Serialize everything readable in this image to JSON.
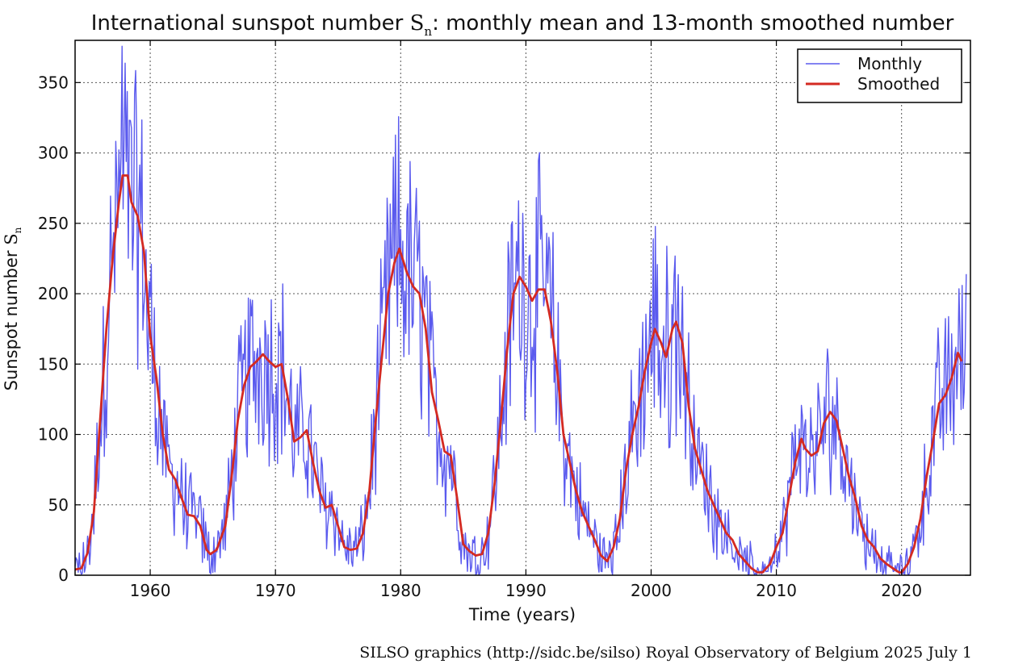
{
  "chart_data": {
    "type": "line",
    "title": {
      "prefix": "International sunspot number ",
      "symbol": "S",
      "subscript": "n",
      "suffix": ": monthly mean and 13-month smoothed number"
    },
    "xlabel": "Time (years)",
    "ylabel": {
      "prefix": "Sunspot number ",
      "symbol": "S",
      "subscript": "n"
    },
    "xlim": [
      1954.0,
      2025.5
    ],
    "ylim": [
      0,
      380
    ],
    "xticks": [
      1960,
      1970,
      1980,
      1990,
      2000,
      2010,
      2020
    ],
    "yticks": [
      0,
      50,
      100,
      150,
      200,
      250,
      300,
      350
    ],
    "grid": true,
    "legend_position": "top-right",
    "legend": [
      "Monthly",
      "Smoothed"
    ],
    "colors": {
      "monthly": "#5a5aee",
      "smoothed": "#d42a22"
    },
    "series": [
      {
        "name": "Smoothed",
        "points": [
          [
            1954.0,
            4
          ],
          [
            1954.5,
            5
          ],
          [
            1955.0,
            16
          ],
          [
            1955.5,
            45
          ],
          [
            1956.0,
            110
          ],
          [
            1956.5,
            175
          ],
          [
            1957.0,
            225
          ],
          [
            1957.5,
            265
          ],
          [
            1957.8,
            284
          ],
          [
            1958.2,
            284
          ],
          [
            1958.5,
            265
          ],
          [
            1959.0,
            255
          ],
          [
            1959.5,
            230
          ],
          [
            1960.0,
            170
          ],
          [
            1960.5,
            140
          ],
          [
            1961.0,
            100
          ],
          [
            1961.5,
            75
          ],
          [
            1962.0,
            68
          ],
          [
            1962.5,
            55
          ],
          [
            1963.0,
            43
          ],
          [
            1963.5,
            42
          ],
          [
            1964.0,
            35
          ],
          [
            1964.5,
            18
          ],
          [
            1964.8,
            15
          ],
          [
            1965.3,
            18
          ],
          [
            1966.0,
            35
          ],
          [
            1966.5,
            70
          ],
          [
            1967.0,
            110
          ],
          [
            1967.5,
            135
          ],
          [
            1968.0,
            148
          ],
          [
            1968.5,
            152
          ],
          [
            1969.0,
            157
          ],
          [
            1969.5,
            152
          ],
          [
            1970.0,
            148
          ],
          [
            1970.5,
            150
          ],
          [
            1971.0,
            125
          ],
          [
            1971.5,
            95
          ],
          [
            1972.0,
            98
          ],
          [
            1972.5,
            103
          ],
          [
            1973.0,
            80
          ],
          [
            1973.5,
            60
          ],
          [
            1974.0,
            48
          ],
          [
            1974.5,
            50
          ],
          [
            1975.0,
            35
          ],
          [
            1975.5,
            20
          ],
          [
            1976.0,
            18
          ],
          [
            1976.5,
            19
          ],
          [
            1977.0,
            30
          ],
          [
            1977.5,
            60
          ],
          [
            1978.0,
            110
          ],
          [
            1978.5,
            155
          ],
          [
            1979.0,
            200
          ],
          [
            1979.5,
            222
          ],
          [
            1979.9,
            232
          ],
          [
            1980.5,
            215
          ],
          [
            1981.0,
            205
          ],
          [
            1981.5,
            200
          ],
          [
            1982.0,
            175
          ],
          [
            1982.5,
            130
          ],
          [
            1983.0,
            110
          ],
          [
            1983.5,
            88
          ],
          [
            1984.0,
            85
          ],
          [
            1984.5,
            55
          ],
          [
            1985.0,
            22
          ],
          [
            1985.5,
            17
          ],
          [
            1986.0,
            14
          ],
          [
            1986.5,
            15
          ],
          [
            1987.0,
            30
          ],
          [
            1987.5,
            65
          ],
          [
            1988.0,
            110
          ],
          [
            1988.5,
            160
          ],
          [
            1989.0,
            200
          ],
          [
            1989.5,
            212
          ],
          [
            1990.0,
            205
          ],
          [
            1990.5,
            195
          ],
          [
            1991.0,
            203
          ],
          [
            1991.5,
            203
          ],
          [
            1992.0,
            180
          ],
          [
            1992.5,
            145
          ],
          [
            1993.0,
            100
          ],
          [
            1993.5,
            80
          ],
          [
            1994.0,
            60
          ],
          [
            1994.5,
            45
          ],
          [
            1995.0,
            35
          ],
          [
            1995.5,
            25
          ],
          [
            1996.0,
            14
          ],
          [
            1996.5,
            10
          ],
          [
            1997.0,
            20
          ],
          [
            1997.5,
            40
          ],
          [
            1998.0,
            75
          ],
          [
            1998.5,
            100
          ],
          [
            1999.0,
            120
          ],
          [
            1999.5,
            145
          ],
          [
            2000.0,
            165
          ],
          [
            2000.3,
            175
          ],
          [
            2000.8,
            165
          ],
          [
            2001.2,
            155
          ],
          [
            2001.7,
            175
          ],
          [
            2002.0,
            180
          ],
          [
            2002.5,
            165
          ],
          [
            2003.0,
            120
          ],
          [
            2003.5,
            90
          ],
          [
            2004.0,
            75
          ],
          [
            2004.5,
            60
          ],
          [
            2005.0,
            50
          ],
          [
            2005.5,
            40
          ],
          [
            2006.0,
            30
          ],
          [
            2006.5,
            25
          ],
          [
            2007.0,
            15
          ],
          [
            2007.5,
            10
          ],
          [
            2008.0,
            5
          ],
          [
            2008.5,
            2
          ],
          [
            2008.9,
            2
          ],
          [
            2009.5,
            8
          ],
          [
            2010.0,
            20
          ],
          [
            2010.5,
            30
          ],
          [
            2011.0,
            55
          ],
          [
            2011.5,
            80
          ],
          [
            2012.0,
            97
          ],
          [
            2012.3,
            90
          ],
          [
            2012.8,
            85
          ],
          [
            2013.3,
            88
          ],
          [
            2013.8,
            108
          ],
          [
            2014.3,
            116
          ],
          [
            2014.8,
            110
          ],
          [
            2015.3,
            90
          ],
          [
            2015.8,
            70
          ],
          [
            2016.3,
            55
          ],
          [
            2016.8,
            35
          ],
          [
            2017.3,
            25
          ],
          [
            2017.8,
            20
          ],
          [
            2018.3,
            12
          ],
          [
            2018.8,
            8
          ],
          [
            2019.3,
            5
          ],
          [
            2019.8,
            2
          ],
          [
            2020.0,
            2
          ],
          [
            2020.5,
            8
          ],
          [
            2021.0,
            20
          ],
          [
            2021.5,
            40
          ],
          [
            2022.0,
            70
          ],
          [
            2022.5,
            95
          ],
          [
            2023.0,
            122
          ],
          [
            2023.5,
            128
          ],
          [
            2024.0,
            140
          ],
          [
            2024.5,
            158
          ],
          [
            2024.8,
            152
          ]
        ]
      }
    ]
  },
  "footer": {
    "credit": "SILSO graphics (http://sidc.be/silso)  Royal Observatory of Belgium  2025 July 1"
  }
}
